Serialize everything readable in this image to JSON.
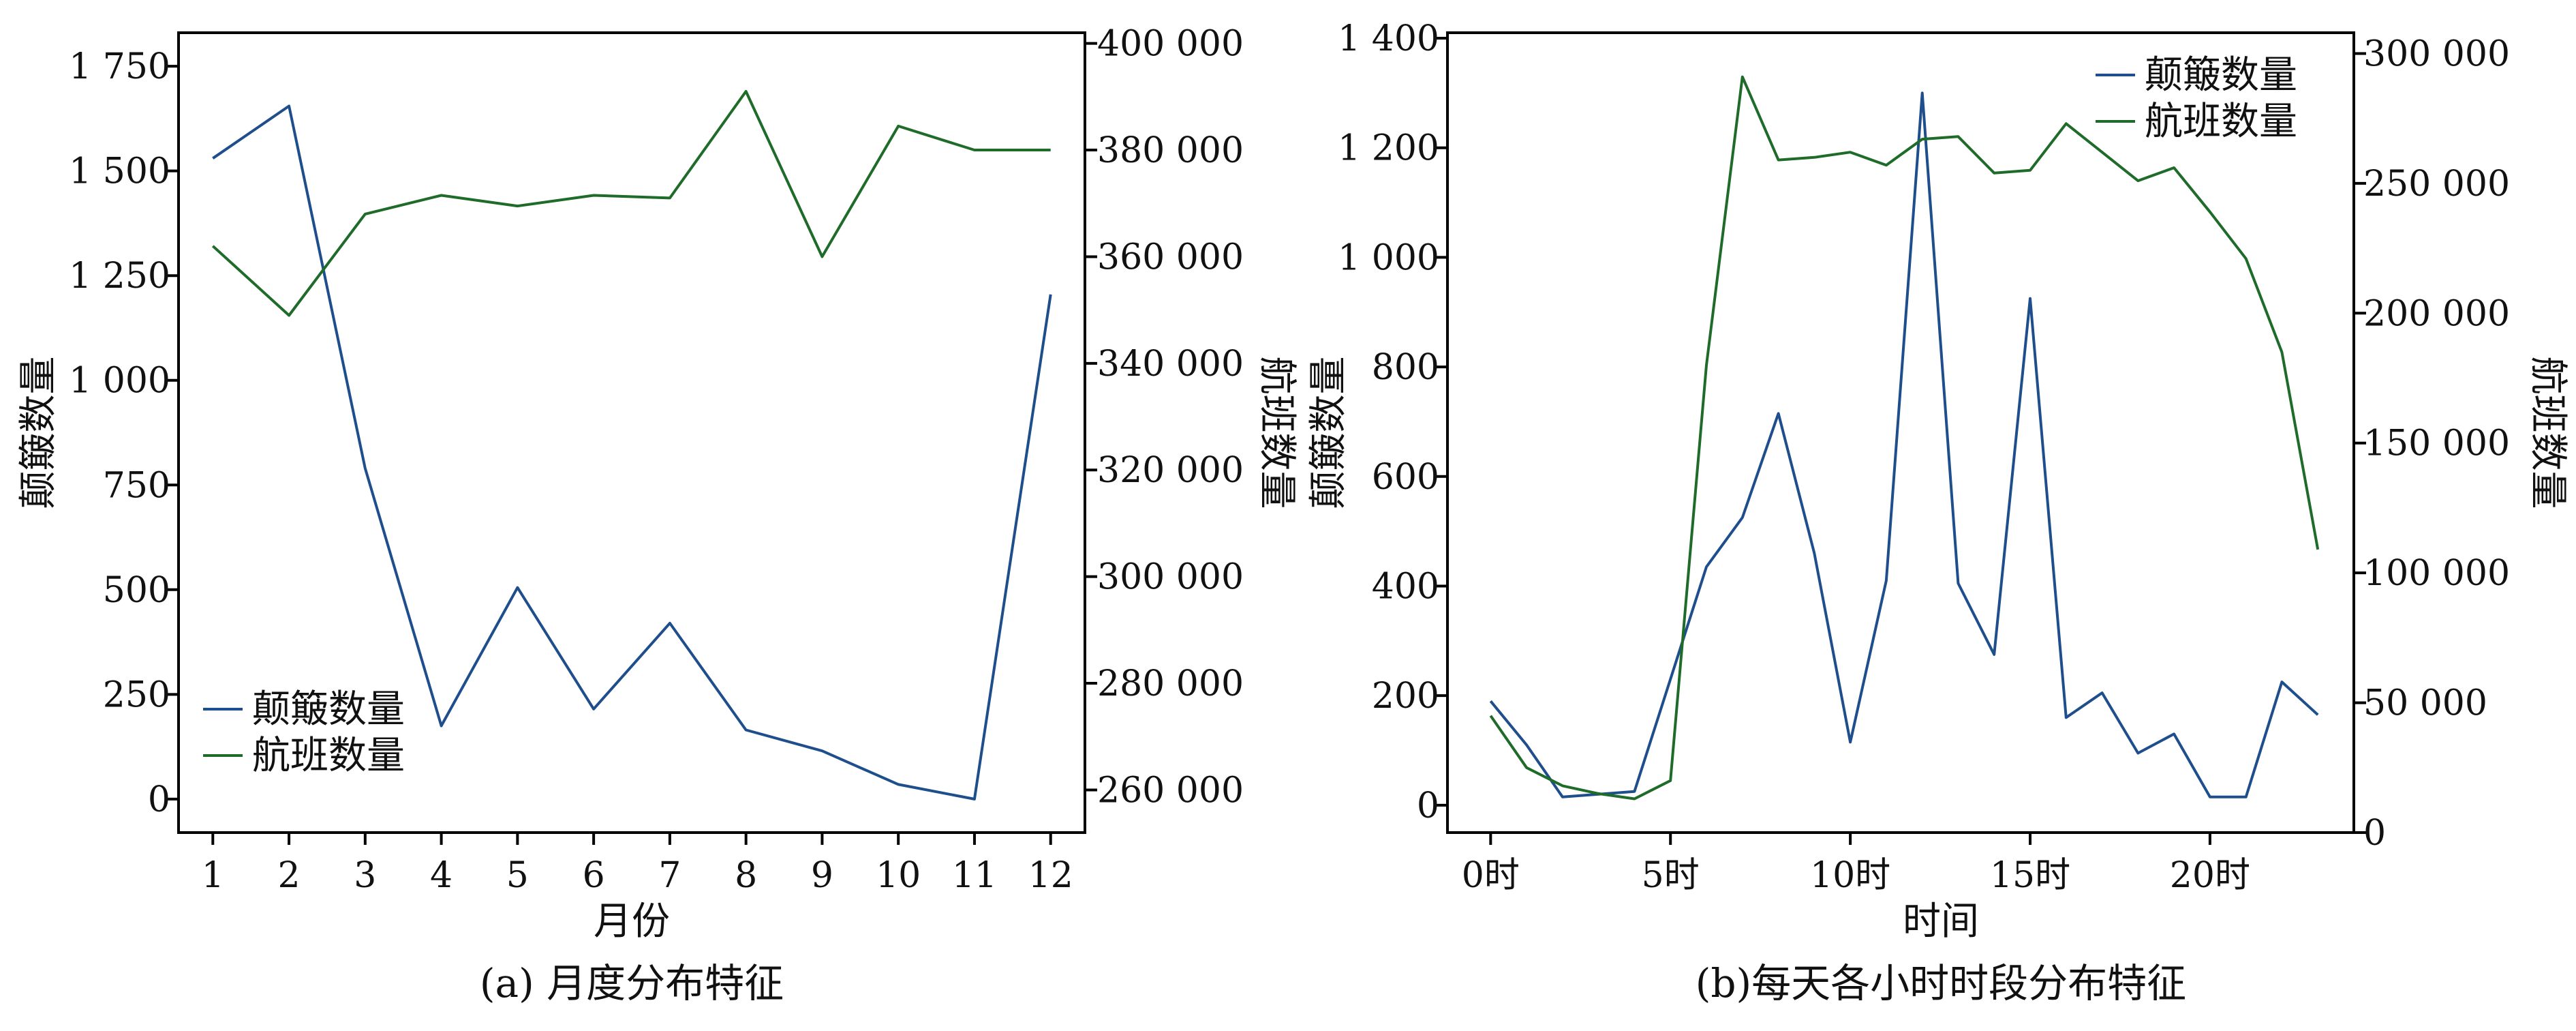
{
  "chart_data": [
    {
      "type": "line",
      "caption": "(a) 月度分布特征",
      "xlabel": "月份",
      "ylabel_left": "颠簸数量",
      "ylabel_right": "航班数量",
      "ylim_left": [
        -80,
        1830
      ],
      "ylim_right": [
        252000,
        402000
      ],
      "yticks_left": [
        0,
        250,
        500,
        750,
        1000,
        1250,
        1500,
        1750
      ],
      "yticks_right": [
        260000,
        280000,
        300000,
        320000,
        340000,
        360000,
        380000,
        400000
      ],
      "x": [
        1,
        2,
        3,
        4,
        5,
        6,
        7,
        8,
        9,
        10,
        11,
        12
      ],
      "legend_position": "lower-left",
      "series": [
        {
          "name": "颠簸数量",
          "axis": "left",
          "color": "#1f4e8c",
          "values": [
            1530,
            1655,
            790,
            175,
            505,
            215,
            420,
            165,
            115,
            35,
            0,
            1205
          ]
        },
        {
          "name": "航班数量",
          "axis": "right",
          "color": "#1e6b2a",
          "values": [
            362000,
            349000,
            368000,
            371500,
            369500,
            371500,
            371000,
            391000,
            360000,
            384500,
            380000,
            380000
          ]
        }
      ],
      "tick_labels": {
        "x": [
          "1",
          "2",
          "3",
          "4",
          "5",
          "6",
          "7",
          "8",
          "9",
          "10",
          "11",
          "12"
        ],
        "left": [
          "0",
          "250",
          "500",
          "750",
          "1 000",
          "1 250",
          "1 500",
          "1 750"
        ],
        "right": [
          "260 000",
          "280 000",
          "300 000",
          "320 000",
          "340 000",
          "360 000",
          "380 000",
          "400 000"
        ]
      }
    },
    {
      "type": "line",
      "caption": "(b)每天各小时时段分布特征",
      "xlabel": "时间",
      "ylabel_left": "颠簸数量",
      "ylabel_right": "航班数量",
      "ylim_left": [
        -50,
        1410
      ],
      "ylim_right": [
        0,
        308000
      ],
      "yticks_left": [
        0,
        200,
        400,
        600,
        800,
        1000,
        1200,
        1400
      ],
      "yticks_right": [
        0,
        50000,
        100000,
        150000,
        200000,
        250000,
        300000
      ],
      "xlim": [
        -1.2,
        24
      ],
      "x": [
        0,
        1,
        2,
        3,
        4,
        5,
        6,
        7,
        8,
        9,
        10,
        11,
        12,
        13,
        14,
        15,
        16,
        17,
        18,
        19,
        20,
        21,
        22,
        23
      ],
      "legend_position": "top-right",
      "series": [
        {
          "name": "颠簸数量",
          "axis": "left",
          "color": "#1f4e8c",
          "values": [
            190,
            110,
            15,
            20,
            25,
            230,
            435,
            525,
            715,
            460,
            115,
            410,
            1300,
            405,
            275,
            925,
            160,
            205,
            95,
            130,
            15,
            15,
            225,
            165
          ]
        },
        {
          "name": "航班数量",
          "axis": "right",
          "color": "#1e6b2a",
          "values": [
            45000,
            25000,
            18000,
            15000,
            13000,
            20000,
            180000,
            291000,
            259000,
            260000,
            262000,
            257000,
            267000,
            268000,
            254000,
            255000,
            273000,
            262000,
            251000,
            256000,
            239000,
            221000,
            185000,
            109000
          ]
        }
      ],
      "tick_labels": {
        "x": [
          "0时",
          "5时",
          "10时",
          "15时",
          "20时"
        ],
        "x_positions": [
          0,
          5,
          10,
          15,
          20
        ],
        "left": [
          "0",
          "200",
          "400",
          "600",
          "800",
          "1 000",
          "1 200",
          "1 400"
        ],
        "right": [
          "0",
          "50 000",
          "100 000",
          "150 000",
          "200 000",
          "250 000",
          "300 000"
        ]
      }
    }
  ]
}
